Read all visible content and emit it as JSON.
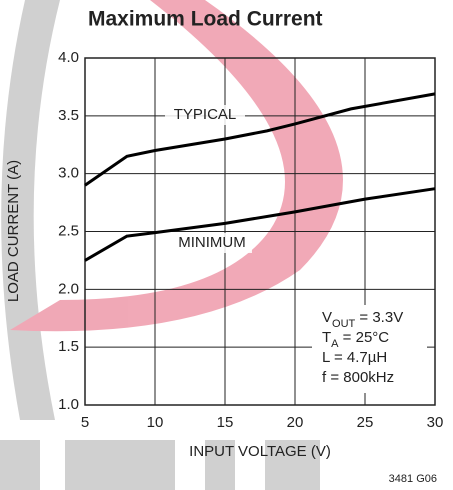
{
  "chart_data": {
    "type": "line",
    "title": "Maximum Load Current",
    "x_label": "INPUT VOLTAGE (V)",
    "y_label": "LOAD CURRENT (A)",
    "xlim": [
      5,
      30
    ],
    "xticks": [
      5,
      10,
      15,
      20,
      25,
      30
    ],
    "ylim": [
      1,
      4
    ],
    "yticks": [
      {
        "value": 1,
        "label": "1.0"
      },
      {
        "value": 1.5,
        "label": "1.5"
      },
      {
        "value": 2,
        "label": "2.0"
      },
      {
        "value": 2.5,
        "label": "2.5"
      },
      {
        "value": 3,
        "label": "3.0"
      },
      {
        "value": 3.5,
        "label": "3.5"
      },
      {
        "value": 4,
        "label": "4.0"
      }
    ],
    "grid": true,
    "series": [
      {
        "name": "TYPICAL",
        "color": "#000000",
        "x": [
          5,
          8,
          10,
          15,
          18,
          20,
          24,
          30
        ],
        "values": [
          2.9,
          3.15,
          3.2,
          3.3,
          3.37,
          3.43,
          3.56,
          3.69
        ]
      },
      {
        "name": "MINIMUM",
        "color": "#000000",
        "x": [
          5,
          8,
          10,
          15,
          20,
          25,
          30
        ],
        "values": [
          2.25,
          2.46,
          2.49,
          2.57,
          2.67,
          2.78,
          2.87
        ]
      }
    ],
    "conditions": [
      [
        "V",
        "OUT",
        " = 3.3V"
      ],
      [
        "T",
        "A",
        " = 25°C"
      ],
      [
        "L = 4.7µH"
      ],
      [
        "f = 800kHz"
      ]
    ],
    "footnote": "3481 G06"
  }
}
